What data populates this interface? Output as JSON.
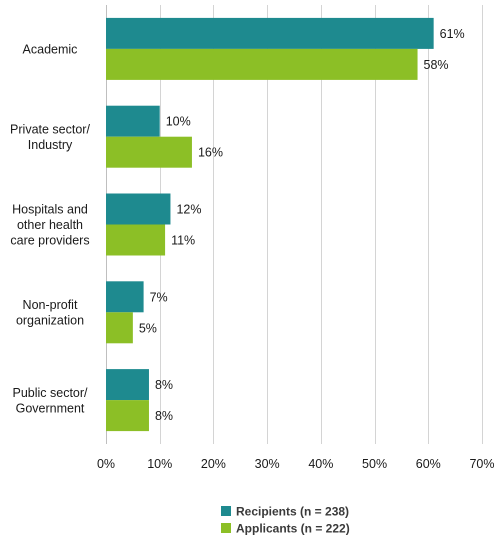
{
  "chart_data": {
    "type": "bar",
    "orientation": "horizontal",
    "categories": [
      [
        "Academic"
      ],
      [
        "Private sector/",
        "Industry"
      ],
      [
        "Hospitals and",
        "other health",
        "care providers"
      ],
      [
        "Non-profit",
        "organization"
      ],
      [
        "Public sector/",
        "Government"
      ]
    ],
    "series": [
      {
        "name": "Recipients (n = 238)",
        "color": "#1e8a8f",
        "values": [
          61,
          10,
          12,
          7,
          8
        ]
      },
      {
        "name": "Applicants (n = 222)",
        "color": "#8cbf26",
        "values": [
          58,
          16,
          11,
          5,
          8
        ]
      }
    ],
    "xlim": [
      0,
      70
    ],
    "xticks": [
      0,
      10,
      20,
      30,
      40,
      50,
      60,
      70
    ],
    "tick_suffix": "%",
    "value_suffix": "%",
    "grid": true,
    "legend_position": "bottom"
  }
}
